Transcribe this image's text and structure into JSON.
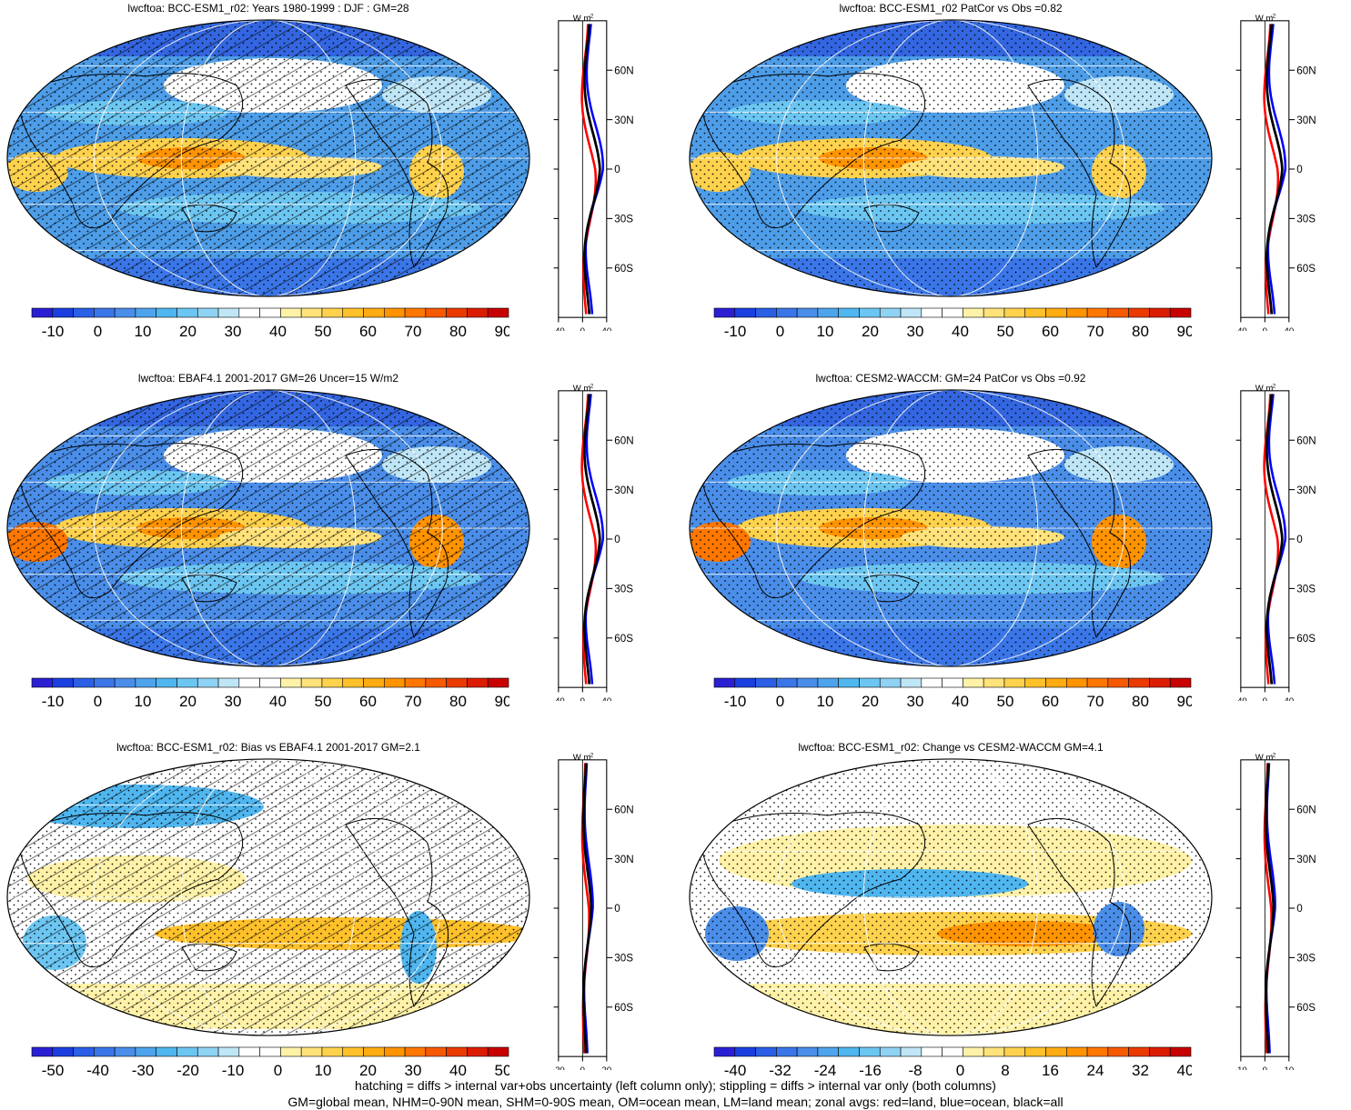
{
  "panels": [
    {
      "title": "lwcftoa: BCC-ESM1_r02: Years 1980-1999 : DJF : GM=28",
      "variant": "clim_bcc",
      "hatching": true,
      "colorbar": "abs",
      "zonal_x_ticks": [
        "-40",
        "0",
        "40"
      ],
      "zonal_y_ticks": [
        "60N",
        "30N",
        "0",
        "30S",
        "60S"
      ],
      "zonal_unit": "W m",
      "zonal_unit_sup": "-2"
    },
    {
      "title": "lwcftoa: BCC-ESM1_r02 PatCor vs Obs =0.82",
      "variant": "clim_bcc",
      "hatching": false,
      "colorbar": "abs",
      "zonal_x_ticks": [
        "-40",
        "0",
        "40"
      ],
      "zonal_y_ticks": [
        "60N",
        "30N",
        "0",
        "30S",
        "60S"
      ],
      "zonal_unit": "W m",
      "zonal_unit_sup": "-2"
    },
    {
      "title": "lwcftoa: EBAF4.1 2001-2017 GM=26 Uncer=15 W/m2",
      "variant": "clim_obs",
      "hatching": true,
      "colorbar": "abs",
      "zonal_x_ticks": [
        "-40",
        "0",
        "40"
      ],
      "zonal_y_ticks": [
        "60N",
        "30N",
        "0",
        "30S",
        "60S"
      ],
      "zonal_unit": "W m",
      "zonal_unit_sup": "-2"
    },
    {
      "title": "lwcftoa: CESM2-WACCM: GM=24 PatCor vs Obs =0.92",
      "variant": "clim_obs",
      "hatching": false,
      "colorbar": "abs",
      "zonal_x_ticks": [
        "-40",
        "0",
        "40"
      ],
      "zonal_y_ticks": [
        "60N",
        "30N",
        "0",
        "30S",
        "60S"
      ],
      "zonal_unit": "W m",
      "zonal_unit_sup": "-2"
    },
    {
      "title": "lwcftoa: BCC-ESM1_r02: Bias vs EBAF4.1 2001-2017 GM=2.1",
      "variant": "bias",
      "hatching": true,
      "colorbar": "bias",
      "zonal_x_ticks": [
        "-20",
        "0",
        "20"
      ],
      "zonal_y_ticks": [
        "60N",
        "30N",
        "0",
        "30S",
        "60S"
      ],
      "zonal_unit": "W m",
      "zonal_unit_sup": "-2"
    },
    {
      "title": "lwcftoa: BCC-ESM1_r02: Change vs CESM2-WACCM GM=4.1",
      "variant": "change",
      "hatching": false,
      "colorbar": "change",
      "zonal_x_ticks": [
        "-10",
        "0",
        "10"
      ],
      "zonal_y_ticks": [
        "60N",
        "30N",
        "0",
        "30S",
        "60S"
      ],
      "zonal_unit": "W m",
      "zonal_unit_sup": "-2"
    }
  ],
  "colorbars": {
    "abs": {
      "labels": [
        "-10",
        "0",
        "10",
        "20",
        "30",
        "40",
        "50",
        "60",
        "70",
        "80",
        "90"
      ],
      "colors": [
        "#2b1fd4",
        "#1a3fe0",
        "#2a5fe6",
        "#3a76e8",
        "#4a8ee9",
        "#4ea4ec",
        "#4fb6ef",
        "#6cc6f2",
        "#8fd3f4",
        "#bfe6f7",
        "#ffffff",
        "#ffffff",
        "#fff2a8",
        "#ffe27a",
        "#ffd24d",
        "#ffc12a",
        "#ffab12",
        "#ff9300",
        "#ff7700",
        "#f65a00",
        "#ea3a00",
        "#dc1c00",
        "#c80000"
      ]
    },
    "bias": {
      "labels": [
        "-50",
        "-40",
        "-30",
        "-20",
        "-10",
        "0",
        "10",
        "20",
        "30",
        "40",
        "50"
      ],
      "colors": [
        "#2b1fd4",
        "#1a3fe0",
        "#2a5fe6",
        "#3a76e8",
        "#4a8ee9",
        "#4ea4ec",
        "#4fb6ef",
        "#6cc6f2",
        "#8fd3f4",
        "#bfe6f7",
        "#ffffff",
        "#ffffff",
        "#fff2a8",
        "#ffe27a",
        "#ffd24d",
        "#ffc12a",
        "#ffab12",
        "#ff9300",
        "#ff7700",
        "#f65a00",
        "#ea3a00",
        "#dc1c00",
        "#c80000"
      ]
    },
    "change": {
      "labels": [
        "-40",
        "-32",
        "-24",
        "-16",
        "-8",
        "0",
        "8",
        "16",
        "24",
        "32",
        "40"
      ],
      "colors": [
        "#2b1fd4",
        "#1a3fe0",
        "#2a5fe6",
        "#3a76e8",
        "#4a8ee9",
        "#4ea4ec",
        "#4fb6ef",
        "#6cc6f2",
        "#8fd3f4",
        "#bfe6f7",
        "#ffffff",
        "#ffffff",
        "#fff2a8",
        "#ffe27a",
        "#ffd24d",
        "#ffc12a",
        "#ffab12",
        "#ff9300",
        "#ff7700",
        "#f65a00",
        "#ea3a00",
        "#dc1c00",
        "#c80000"
      ]
    }
  },
  "zonal_curve_colors": {
    "land": "#ff0000",
    "ocean": "#0000ff",
    "all": "#000000"
  },
  "footer": {
    "line1": "hatching = diffs > internal var+obs uncertainty (left column only); stippling = diffs > internal var only (both columns)",
    "line2": "GM=global mean, NHM=0-90N mean, SHM=0-90S mean, OM=ocean mean, LM=land mean; zonal avgs: red=land, blue=ocean, black=all"
  }
}
